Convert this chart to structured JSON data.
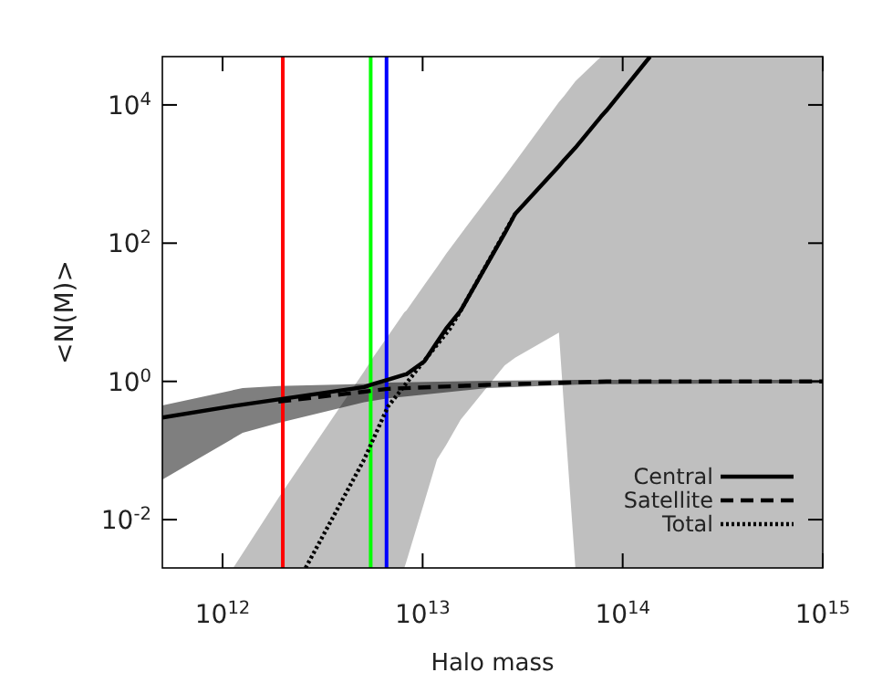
{
  "chart_data": {
    "type": "line",
    "xlabel": "Halo mass",
    "ylabel": "<N(M)>",
    "log": "xy",
    "xlim": [
      500000000000.0,
      1000000000000000.0
    ],
    "ylim": [
      0.002,
      50000
    ],
    "xticks": [
      {
        "value": 1000000000000.0,
        "label": "10$^{12}$"
      },
      {
        "value": 10000000000000.0,
        "label": "10$^{13}$"
      },
      {
        "value": 100000000000000.0,
        "label": "10$^{14}$"
      },
      {
        "value": 1000000000000000.0,
        "label": "10$^{15}$"
      }
    ],
    "yticks": [
      {
        "value": 0.01,
        "label": "10$^{-2}$"
      },
      {
        "value": 1,
        "label": "10$^{0}$"
      },
      {
        "value": 100,
        "label": "10$^{2}$"
      },
      {
        "value": 10000,
        "label": "10$^{4}$"
      }
    ],
    "legend": "bottom right",
    "grid": false,
    "series": [
      {
        "name": "Central",
        "color": "#000000",
        "line_style": "solid",
        "x": [
          500000000000.0,
          1130000000000.0,
          1910000000000.0,
          5100000000000.0,
          5700000000000.0,
          6700000000000.0,
          8100000000000.0,
          8300000000000.0,
          10200000000000.0,
          11800000000000.0,
          13100000000000.0,
          15500000000000.0,
          25700000000000.0,
          29000000000000.0,
          48000000000000.0,
          51000000000000.0,
          58000000000000.0,
          78000000000000.0,
          83000000000000.0,
          137000000000000.0,
          1000000000000000.0
        ],
        "values": [
          0.3,
          0.44,
          0.55,
          0.83,
          0.92,
          1.06,
          1.25,
          1.27,
          1.95,
          3.7,
          5.8,
          10.6,
          138,
          265,
          1300,
          1600,
          2400,
          6800,
          8300,
          50000,
          null
        ],
        "lower": [
          null,
          0.002,
          0.002,
          0.002,
          0.002,
          0.002,
          0.002,
          0.0025,
          0.018,
          0.074,
          0.12,
          0.28,
          1.7,
          2.2,
          5.1,
          0.38,
          0.002,
          0.002,
          0.002,
          0.002,
          0.002
        ],
        "upper": [
          null,
          0.002,
          0.021,
          1.4,
          2.3,
          4.5,
          10,
          10.6,
          25,
          45,
          70,
          135,
          940,
          1500,
          11000,
          13500,
          22000,
          50000,
          50000,
          50000,
          50000
        ]
      },
      {
        "name": "Satellite",
        "color": "#000000",
        "line_style": "dashed",
        "x": [
          500000000000.0,
          1260000000000.0,
          1900000000000.0,
          5100000000000.0,
          6700000000000.0,
          21000000000000.0,
          59000000000000.0,
          83000000000000.0,
          1000000000000000.0
        ],
        "values": [
          null,
          null,
          0.51,
          0.71,
          0.78,
          0.89,
          0.97,
          1.0,
          1.0
        ],
        "lower": [
          0.038,
          0.18,
          0.25,
          0.5,
          0.57,
          0.8,
          0.9,
          0.91,
          0.95
        ],
        "upper": [
          0.45,
          0.8,
          0.86,
          0.92,
          0.96,
          1.02,
          1.05,
          1.05,
          1.05
        ]
      },
      {
        "name": "Total",
        "color": "#000000",
        "line_style": "dotted",
        "x": [
          2600000000000.0,
          5100000000000.0,
          6700000000000.0,
          9000000000000.0,
          13700000000000.0,
          15500000000000.0,
          29000000000000.0
        ],
        "values": [
          0.002,
          0.074,
          0.43,
          1.27,
          5.8,
          10.6,
          265
        ]
      }
    ],
    "ref_lines": [
      {
        "axis": "x",
        "value": 2000000000000.0,
        "color": "#ff0000"
      },
      {
        "axis": "x",
        "value": 5500000000000.0,
        "color": "#00ff00"
      },
      {
        "axis": "x",
        "value": 6600000000000.0,
        "color": "#0000ff"
      }
    ]
  }
}
